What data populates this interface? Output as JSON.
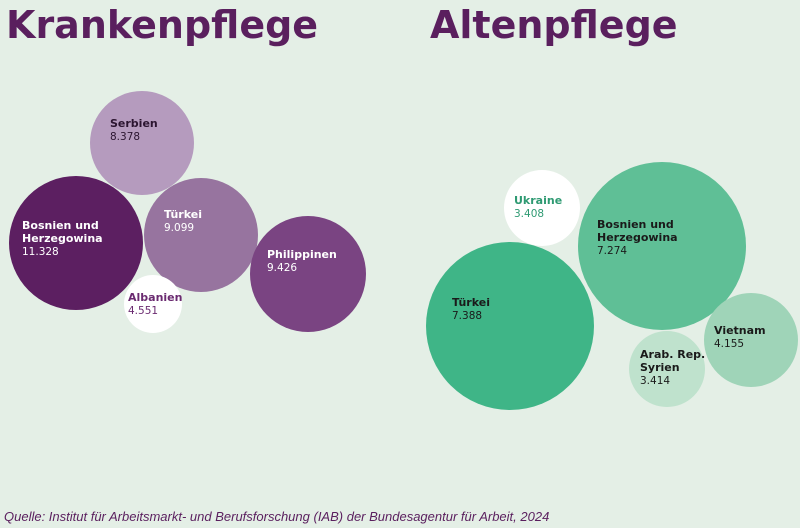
{
  "chart_data": [
    {
      "type": "bubble",
      "title": "Krankenpflege",
      "items": [
        {
          "label": [
            "Serbien"
          ],
          "value": "8.378",
          "fill": "#b59bbe",
          "text": "#2b1530"
        },
        {
          "label": [
            "Bosnien und",
            "Herzegowina"
          ],
          "value": "11.328",
          "fill": "#5c1f61",
          "text": "#ffffff"
        },
        {
          "label": [
            "Türkei"
          ],
          "value": "9.099",
          "fill": "#97749f",
          "text": "#ffffff"
        },
        {
          "label": [
            "Philippinen"
          ],
          "value": "9.426",
          "fill": "#7a4482",
          "text": "#ffffff"
        },
        {
          "label": [
            "Albanien"
          ],
          "value": "4.551",
          "fill": "#ffffff",
          "text": "#6a2a70"
        }
      ]
    },
    {
      "type": "bubble",
      "title": "Altenpflege",
      "items": [
        {
          "label": [
            "Ukraine"
          ],
          "value": "3.408",
          "fill": "#ffffff",
          "text": "#2e9a72"
        },
        {
          "label": [
            "Bosnien und",
            "Herzegowina"
          ],
          "value": "7.274",
          "fill": "#5fbf96",
          "text": "#1a1a1a"
        },
        {
          "label": [
            "Türkei"
          ],
          "value": "7.388",
          "fill": "#3fb587",
          "text": "#1a1a1a"
        },
        {
          "label": [
            "Vietnam"
          ],
          "value": "4.155",
          "fill": "#9fd4b8",
          "text": "#1a1a1a"
        },
        {
          "label": [
            "Arab. Rep.",
            "Syrien"
          ],
          "value": "3.414",
          "fill": "#bfe2cd",
          "text": "#1a1a1a"
        }
      ]
    }
  ],
  "source": "Quelle: Institut für Arbeitsmarkt- und Berufsforschung (IAB) der Bundesagentur für Arbeit, 2024",
  "colors": {
    "background": "#e4efe6",
    "title": "#5a1f5e"
  }
}
